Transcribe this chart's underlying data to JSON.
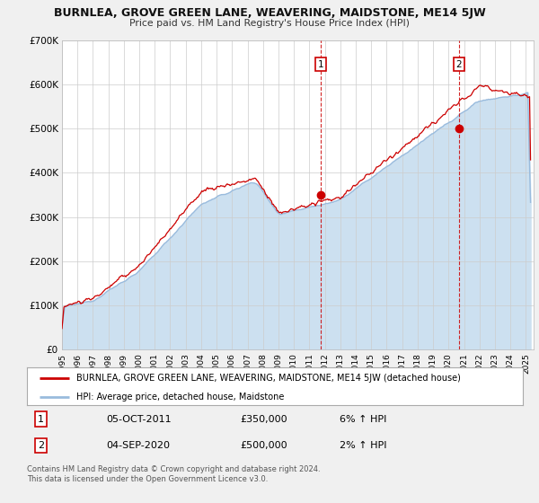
{
  "title": "BURNLEA, GROVE GREEN LANE, WEAVERING, MAIDSTONE, ME14 5JW",
  "subtitle": "Price paid vs. HM Land Registry's House Price Index (HPI)",
  "ylim": [
    0,
    700000
  ],
  "yticks": [
    0,
    100000,
    200000,
    300000,
    400000,
    500000,
    600000,
    700000
  ],
  "ytick_labels": [
    "£0",
    "£100K",
    "£200K",
    "£300K",
    "£400K",
    "£500K",
    "£600K",
    "£700K"
  ],
  "xlim_start": 1995.0,
  "xlim_end": 2025.5,
  "red_line_color": "#cc0000",
  "blue_line_color": "#99bbdd",
  "blue_fill_color": "#cce0f0",
  "marker1_date": 2011.75,
  "marker1_value": 350000,
  "marker2_date": 2020.67,
  "marker2_value": 500000,
  "vline1_x": 2011.75,
  "vline2_x": 2020.67,
  "legend_red_label": "BURNLEA, GROVE GREEN LANE, WEAVERING, MAIDSTONE, ME14 5JW (detached house)",
  "legend_blue_label": "HPI: Average price, detached house, Maidstone",
  "table_row1": [
    "1",
    "05-OCT-2011",
    "£350,000",
    "6% ↑ HPI"
  ],
  "table_row2": [
    "2",
    "04-SEP-2020",
    "£500,000",
    "2% ↑ HPI"
  ],
  "footer_line1": "Contains HM Land Registry data © Crown copyright and database right 2024.",
  "footer_line2": "This data is licensed under the Open Government Licence v3.0.",
  "background_color": "#f0f0f0",
  "plot_bg_color": "#ffffff",
  "grid_color": "#cccccc",
  "label_box_color": "#cc0000"
}
